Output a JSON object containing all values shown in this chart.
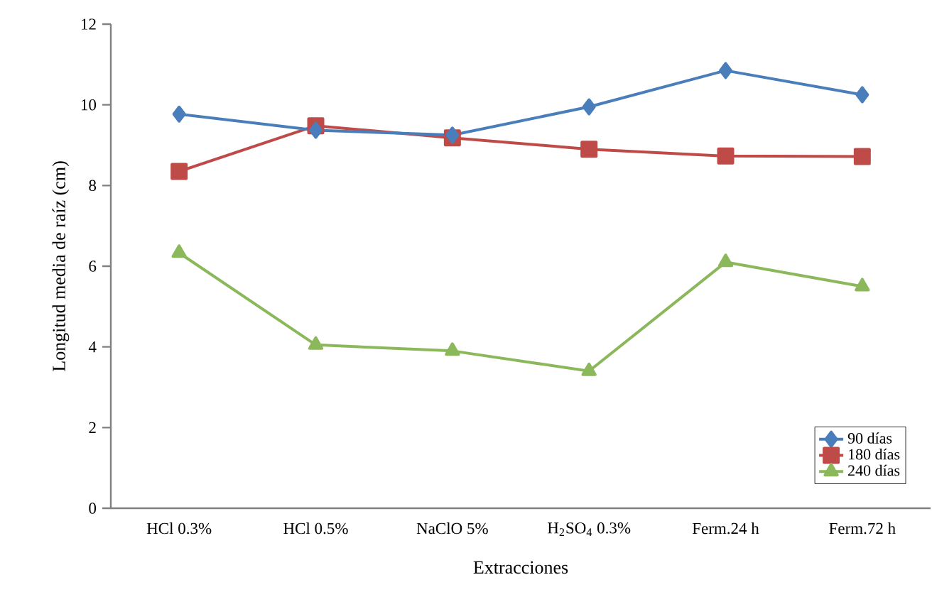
{
  "chart_data": {
    "type": "line",
    "xlabel": "Extracciones",
    "ylabel": "Longitud media de raíz (cm)",
    "categories": [
      "HCl 0.3%",
      "HCl 0.5%",
      "NaClO 5%",
      "H$_{2}$SO$_{4}$ 0.3%",
      "Ferm.24 h",
      "Ferm.72 h"
    ],
    "series": [
      {
        "name": "90 días",
        "color": "#4a7ebb",
        "marker": "diamond",
        "values": [
          9.77,
          9.37,
          9.25,
          9.95,
          10.85,
          10.25
        ]
      },
      {
        "name": "180 días",
        "color": "#be4b48",
        "marker": "square",
        "values": [
          8.35,
          9.48,
          9.18,
          8.9,
          8.73,
          8.72
        ]
      },
      {
        "name": "240 días",
        "color": "#8cb85c",
        "marker": "triangle",
        "values": [
          6.33,
          4.05,
          3.9,
          3.4,
          6.1,
          5.5
        ]
      }
    ],
    "ylim": [
      0,
      12
    ],
    "yticks": [
      0,
      2,
      4,
      6,
      8,
      10,
      12
    ],
    "grid": false,
    "legend": "bottom right"
  }
}
